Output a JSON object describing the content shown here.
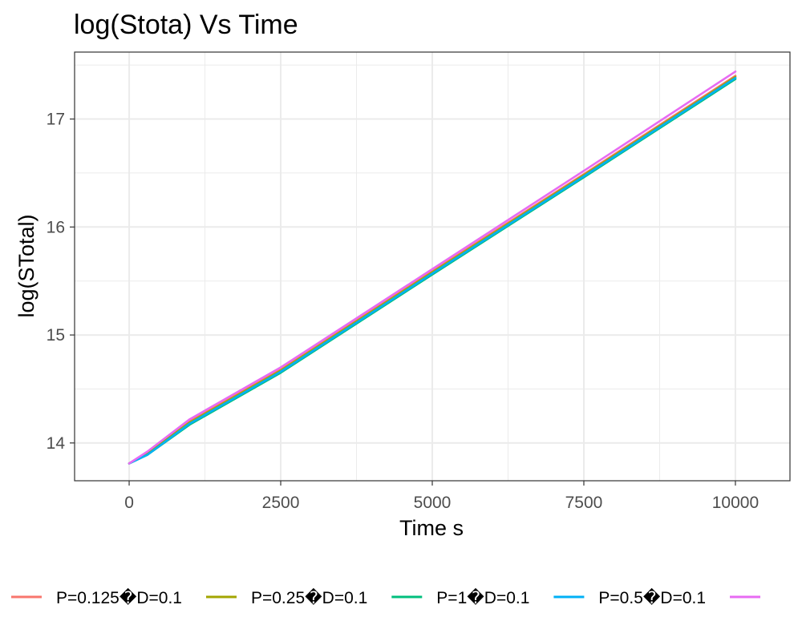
{
  "chart_data": {
    "type": "line",
    "title": "log(Stota) Vs Time",
    "xlabel": "Time s",
    "ylabel": "log(STotal)",
    "xlim": [
      -900,
      10900
    ],
    "ylim": [
      13.65,
      17.62
    ],
    "x_ticks": [
      0,
      2500,
      5000,
      7500,
      10000
    ],
    "x_tick_labels": [
      "0",
      "2500",
      "5000",
      "7500",
      "10000"
    ],
    "y_ticks": [
      14,
      15,
      16,
      17
    ],
    "y_tick_labels": [
      "14",
      "15",
      "16",
      "17"
    ],
    "grid": true,
    "legend_position": "bottom",
    "series": [
      {
        "name": "P=0.125�D=0.1",
        "color": "#F8766D",
        "x": [
          0,
          300,
          1000,
          2500,
          5000,
          7500,
          10000
        ],
        "y": [
          13.81,
          13.91,
          14.2,
          14.68,
          15.59,
          16.49,
          17.4
        ]
      },
      {
        "name": "P=0.25�D=0.1",
        "color": "#A3A500",
        "x": [
          0,
          300,
          1000,
          2500,
          5000,
          7500,
          10000
        ],
        "y": [
          13.81,
          13.9,
          14.19,
          14.67,
          15.58,
          16.48,
          17.39
        ]
      },
      {
        "name": "P=1�D=0.1",
        "color": "#00BF7D",
        "x": [
          0,
          300,
          1000,
          2500,
          5000,
          7500,
          10000
        ],
        "y": [
          13.81,
          13.89,
          14.17,
          14.65,
          15.56,
          16.46,
          17.37
        ]
      },
      {
        "name": "P=0.5�D=0.1",
        "color": "#00B0F6",
        "x": [
          0,
          300,
          1000,
          2500,
          5000,
          7500,
          10000
        ],
        "y": [
          13.81,
          13.89,
          14.18,
          14.66,
          15.57,
          16.47,
          17.38
        ]
      },
      {
        "name": "",
        "color": "#E76BF3",
        "x": [
          0,
          300,
          1000,
          2500,
          5000,
          7500,
          10000
        ],
        "y": [
          13.81,
          13.92,
          14.22,
          14.7,
          15.61,
          16.52,
          17.44
        ]
      }
    ]
  }
}
